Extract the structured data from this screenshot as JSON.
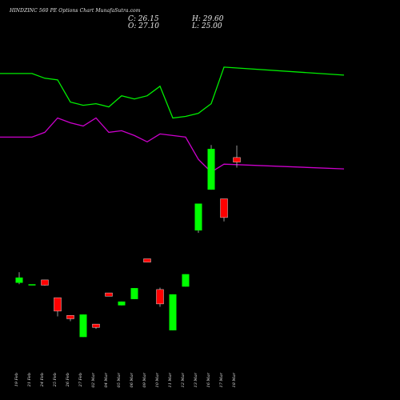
{
  "title": "HINDZINC 560 PE Options Chart MunafaSutra.com",
  "ohlc": {
    "close": "C: 26.15",
    "open": "O: 27.10",
    "high": "H: 29.60",
    "low": "L: 25.00"
  },
  "colors": {
    "background": "#000000",
    "up": "#00ff00",
    "down": "#ff0000",
    "line1": "#00ee00",
    "line2": "#cc00cc",
    "text": "#e8e8e8"
  },
  "chart_data": {
    "type": "candlestick",
    "categories": [
      "19 Feb",
      "21 Feb",
      "24 Feb",
      "25 Feb",
      "26 Feb",
      "27 Feb",
      "02 Mar",
      "04 Mar",
      "05 Mar",
      "06 Mar",
      "09 Mar",
      "10 Mar",
      "11 Mar",
      "12 Mar",
      "13 Mar",
      "16 Mar",
      "17 Mar",
      "18 Mar"
    ],
    "candles": [
      {
        "o": 1.0,
        "h": 3.2,
        "l": 0.7,
        "c": 2.1,
        "dir": "up"
      },
      {
        "o": 0.7,
        "h": 0.7,
        "l": 0.7,
        "c": 0.7,
        "dir": "up"
      },
      {
        "o": 1.6,
        "h": 1.6,
        "l": 0.4,
        "c": 0.5,
        "dir": "down"
      },
      {
        "o": -2.1,
        "h": -2.1,
        "l": -6.0,
        "c": -4.9,
        "dir": "down"
      },
      {
        "o": -5.8,
        "h": -5.8,
        "l": -7.0,
        "c": -6.5,
        "dir": "down"
      },
      {
        "o": -10.3,
        "h": -5.6,
        "l": -10.3,
        "c": -5.6,
        "dir": "up"
      },
      {
        "o": -7.6,
        "h": -7.6,
        "l": -8.6,
        "c": -8.3,
        "dir": "down"
      },
      {
        "o": -1.1,
        "h": -1.1,
        "l": -1.8,
        "c": -1.8,
        "dir": "down"
      },
      {
        "o": -3.7,
        "h": -2.9,
        "l": -3.7,
        "c": -2.9,
        "dir": "up"
      },
      {
        "o": -2.4,
        "h": -0.1,
        "l": -2.4,
        "c": -0.1,
        "dir": "up"
      },
      {
        "o": 6.0,
        "h": 6.0,
        "l": 5.3,
        "c": 5.3,
        "dir": "down"
      },
      {
        "o": -0.4,
        "h": 0.0,
        "l": -4.0,
        "c": -3.4,
        "dir": "down"
      },
      {
        "o": -8.9,
        "h": -1.4,
        "l": -8.9,
        "c": -1.4,
        "dir": "up"
      },
      {
        "o": 0.2,
        "h": 2.8,
        "l": 0.2,
        "c": 2.8,
        "dir": "up"
      },
      {
        "o": 11.9,
        "h": 17.5,
        "l": 11.4,
        "c": 17.5,
        "dir": "up"
      },
      {
        "o": 20.4,
        "h": 29.7,
        "l": 20.4,
        "c": 28.9,
        "dir": "up"
      },
      {
        "o": 18.5,
        "h": 18.5,
        "l": 13.8,
        "c": 14.6,
        "dir": "down"
      },
      {
        "o": 27.1,
        "h": 29.6,
        "l": 25.0,
        "c": 26.15,
        "dir": "down"
      }
    ],
    "lines": [
      {
        "values": [
          370,
          370,
          367,
          366,
          352,
          350,
          351,
          349,
          356,
          354,
          356,
          362,
          342,
          343,
          345,
          351,
          374,
          369
        ]
      },
      {
        "values": [
          330,
          330,
          333,
          342,
          339,
          337,
          342,
          333,
          334,
          331,
          327,
          332,
          331,
          330,
          316,
          308,
          313,
          310
        ]
      }
    ],
    "title": "",
    "xlabel": "",
    "ylabel": "",
    "grid": false
  }
}
